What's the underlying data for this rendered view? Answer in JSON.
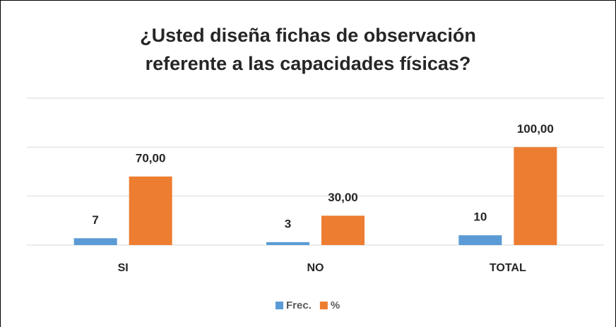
{
  "chart_data": {
    "type": "bar",
    "title": "¿Usted diseña fichas de observación referente a las capacidades físicas?",
    "categories": [
      "SI",
      "NO",
      "TOTAL"
    ],
    "series": [
      {
        "name": "Frec.",
        "color": "#5b9bd5",
        "values": [
          7,
          3,
          10
        ]
      },
      {
        "name": "%",
        "color": "#ed7d31",
        "values": [
          70,
          30,
          100
        ],
        "value_labels": [
          "70,00",
          "30,00",
          "100,00"
        ]
      }
    ],
    "ylim": [
      0,
      150
    ],
    "yticks": [
      0,
      50,
      100,
      150
    ],
    "grid": true,
    "legend": "bottom"
  }
}
